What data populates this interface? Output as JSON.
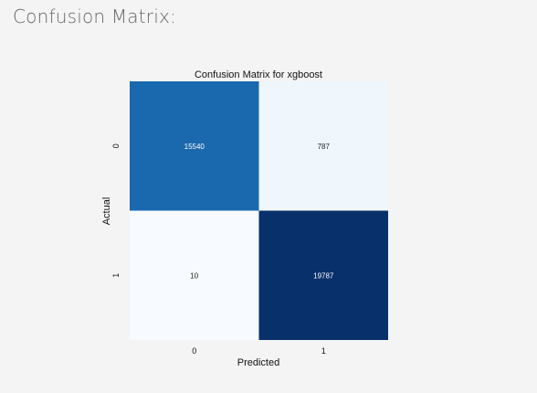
{
  "page": {
    "section_title": "Confusion Matrix:"
  },
  "chart_data": {
    "type": "heatmap",
    "title": "Confusion Matrix for xgboost",
    "xlabel": "Predicted",
    "ylabel": "Actual",
    "x_categories": [
      "0",
      "1"
    ],
    "y_categories": [
      "0",
      "1"
    ],
    "values": [
      [
        15540,
        787
      ],
      [
        10,
        19787
      ]
    ],
    "colormap": "Blues",
    "colorbar": false,
    "annotate": true,
    "colors": {
      "low": "#f7fbff",
      "high": "#08306b",
      "text_on_dark": "#ffffff",
      "text_on_light": "#222222"
    }
  }
}
